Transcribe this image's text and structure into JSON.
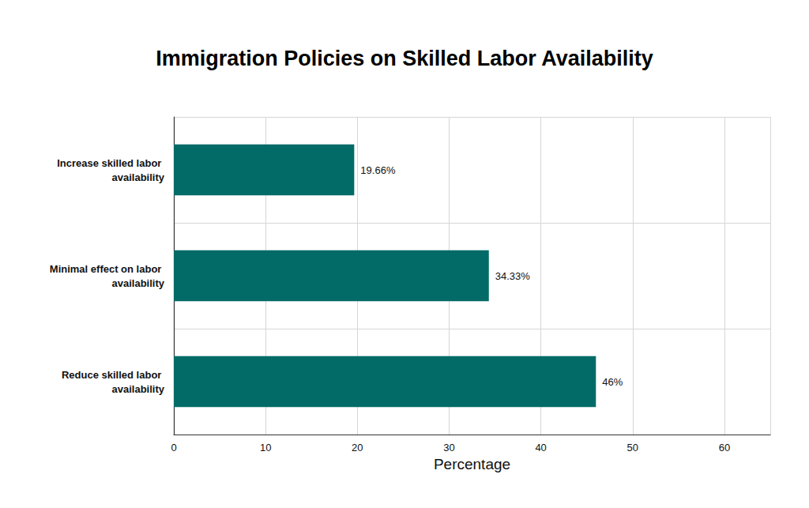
{
  "chart_data": {
    "type": "bar",
    "orientation": "horizontal",
    "title": "Immigration Policies on Skilled Labor Availability",
    "x_label": "Percentage",
    "categories": [
      "Increase skilled labor availability",
      "Minimal effect on labor availability",
      "Reduce skilled labor availability"
    ],
    "values": [
      19.66,
      34.33,
      46
    ],
    "value_labels": [
      "19.66%",
      "34.33%",
      "46%"
    ],
    "data_labels": true,
    "color": "#036b67",
    "xlim": [
      0,
      65
    ],
    "xticks": [
      0,
      10,
      20,
      30,
      40,
      50,
      60
    ],
    "grid": true
  }
}
